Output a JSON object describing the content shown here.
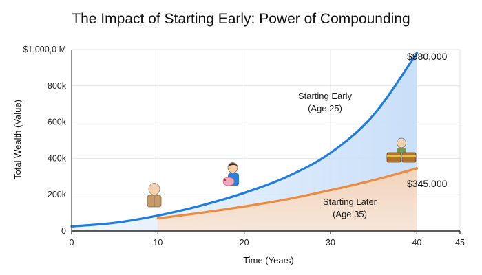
{
  "chart_data": {
    "type": "area",
    "title": "The Impact of Starting Early: Power of Compounding",
    "xlabel": "Time (Years)",
    "ylabel": "Total Wealth (Value)",
    "xlim": [
      0,
      45
    ],
    "ylim": [
      0,
      1000000
    ],
    "x_ticks": [
      0,
      10,
      20,
      30,
      40,
      45
    ],
    "y_ticks": [
      {
        "value": 0,
        "label": "0"
      },
      {
        "value": 200000,
        "label": "200k"
      },
      {
        "value": 400000,
        "label": "400k"
      },
      {
        "value": 600000,
        "label": "600k"
      },
      {
        "value": 800000,
        "label": "800k"
      },
      {
        "value": 1000000,
        "label": "$1,000,0 M"
      }
    ],
    "grid": true,
    "series": [
      {
        "key": "early",
        "color": "#1f7de0",
        "fill": "#d6e8fb",
        "x": [
          0,
          5,
          10,
          15,
          20,
          25,
          30,
          35,
          40
        ],
        "y": [
          25000,
          45000,
          85000,
          140000,
          210000,
          300000,
          430000,
          640000,
          980000
        ]
      },
      {
        "key": "later",
        "color": "#ef8a3c",
        "fill": "#f6ddc9",
        "x": [
          10,
          15,
          20,
          25,
          30,
          35,
          40
        ],
        "y": [
          70000,
          100000,
          135000,
          175000,
          225000,
          280000,
          345000
        ]
      }
    ],
    "annotations": {
      "early_line1": "Starting Early",
      "early_line2": "(Age 25)",
      "later_line1": "Starting Later",
      "later_line2": "(Age 35)",
      "early_end_value": "$980,000",
      "later_end_value": "$345,000"
    },
    "figure_icons": [
      "elderly-person-icon",
      "child-with-piggy-bank-icon",
      "treasure-chest-with-senior-icon"
    ]
  }
}
